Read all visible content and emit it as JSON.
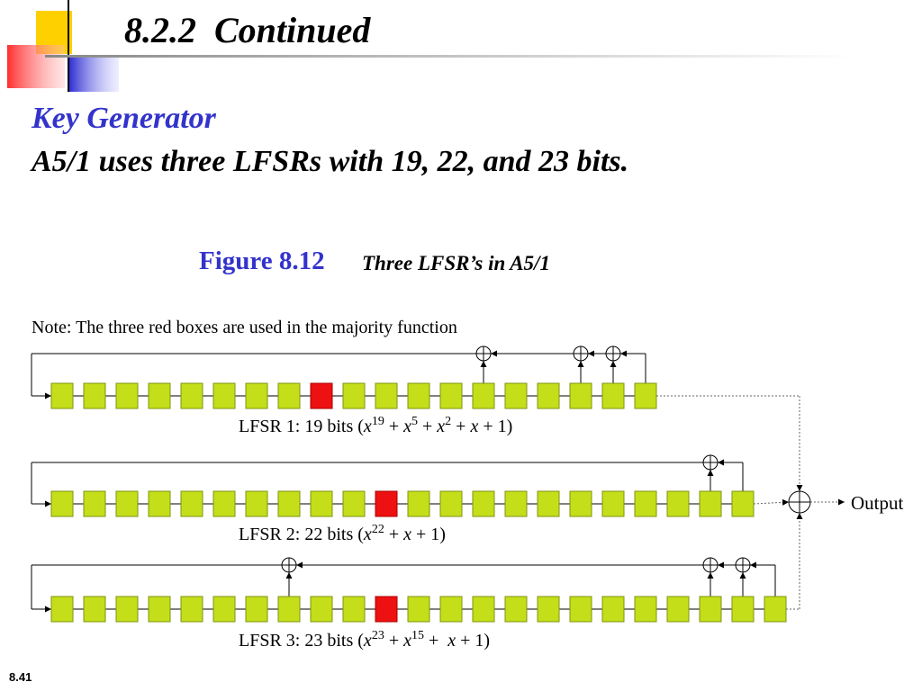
{
  "header": {
    "title": "8.2.2  Continued",
    "slide_number": "8.41"
  },
  "body": {
    "heading": "Key Generator",
    "text": "A5/1 uses three LFSRs with 19, 22, and 23 bits."
  },
  "figure": {
    "label": "Figure 8.12",
    "caption": "Three LFSR’s in A5/1",
    "note": "Note: The three red boxes are used in the majority function",
    "output": "Output",
    "registers": [
      {
        "cells": 19,
        "majority_cell": 8,
        "taps": [
          13,
          16,
          17,
          18
        ],
        "label": [
          {
            "text": "LFSR 1: 19 bits ("
          },
          {
            "text": "x",
            "italic": true
          },
          {
            "text": "19",
            "sup": true
          },
          {
            "text": " + "
          },
          {
            "text": "x",
            "italic": true
          },
          {
            "text": "5",
            "sup": true
          },
          {
            "text": " + "
          },
          {
            "text": "x",
            "italic": true
          },
          {
            "text": "2",
            "sup": true
          },
          {
            "text": " + "
          },
          {
            "text": "x",
            "italic": true
          },
          {
            "text": " + 1)"
          }
        ]
      },
      {
        "cells": 22,
        "majority_cell": 10,
        "taps": [
          20,
          21
        ],
        "label": [
          {
            "text": "LFSR 2: 22 bits ("
          },
          {
            "text": "x",
            "italic": true
          },
          {
            "text": "22",
            "sup": true
          },
          {
            "text": " + "
          },
          {
            "text": "x",
            "italic": true
          },
          {
            "text": " + 1)"
          }
        ]
      },
      {
        "cells": 23,
        "majority_cell": 10,
        "taps": [
          7,
          20,
          21,
          22
        ],
        "label": [
          {
            "text": "LFSR 3: 23 bits ("
          },
          {
            "text": "x",
            "italic": true
          },
          {
            "text": "23",
            "sup": true
          },
          {
            "text": " + "
          },
          {
            "text": "x",
            "italic": true
          },
          {
            "text": "15",
            "sup": true
          },
          {
            "text": " +  "
          },
          {
            "text": "x",
            "italic": true
          },
          {
            "text": " + 1)"
          }
        ]
      }
    ]
  }
}
